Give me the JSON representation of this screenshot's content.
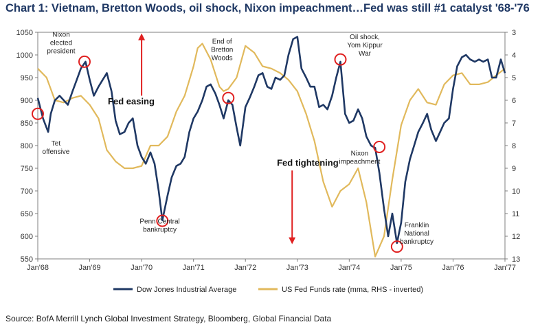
{
  "title": "Chart 1: Vietnam, Bretton Woods, oil shock, Nixon impeachment…Fed was still #1 catalyst '68-'76",
  "source": "Source: BofA Merrill Lynch Global Investment Strategy, Bloomberg, Global Financial Data",
  "colors": {
    "djia": "#1f3864",
    "fed": "#e1b95c",
    "marker": "#e02020",
    "arrow": "#e02020"
  },
  "chart_data": {
    "type": "line",
    "x_start": "Jan'68",
    "x_end": "Jan'77",
    "x_ticks": [
      "Jan'68",
      "Jan'69",
      "Jan'70",
      "Jan'71",
      "Jan'72",
      "Jan'73",
      "Jan'74",
      "Jan'75",
      "Jan'76",
      "Jan'77"
    ],
    "y_left": {
      "min": 550,
      "max": 1050,
      "ticks": [
        550,
        600,
        650,
        700,
        750,
        800,
        850,
        900,
        950,
        1000,
        1050
      ]
    },
    "y_right": {
      "min": 3,
      "max": 13,
      "inverted": true,
      "ticks": [
        3,
        4,
        5,
        6,
        7,
        8,
        9,
        10,
        11,
        12,
        13
      ]
    },
    "grid": false,
    "legend_position": "bottom",
    "series": [
      {
        "name": "Dow Jones Industrial Average",
        "axis": "left",
        "points": [
          [
            1968.0,
            905
          ],
          [
            1968.1,
            860
          ],
          [
            1968.2,
            830
          ],
          [
            1968.25,
            870
          ],
          [
            1968.33,
            900
          ],
          [
            1968.42,
            910
          ],
          [
            1968.5,
            900
          ],
          [
            1968.58,
            890
          ],
          [
            1968.67,
            920
          ],
          [
            1968.75,
            945
          ],
          [
            1968.83,
            970
          ],
          [
            1968.92,
            985
          ],
          [
            1969.0,
            945
          ],
          [
            1969.08,
            910
          ],
          [
            1969.17,
            930
          ],
          [
            1969.25,
            945
          ],
          [
            1969.33,
            960
          ],
          [
            1969.42,
            920
          ],
          [
            1969.5,
            855
          ],
          [
            1969.58,
            825
          ],
          [
            1969.67,
            830
          ],
          [
            1969.75,
            850
          ],
          [
            1969.83,
            860
          ],
          [
            1969.92,
            800
          ],
          [
            1970.0,
            775
          ],
          [
            1970.08,
            760
          ],
          [
            1970.17,
            785
          ],
          [
            1970.25,
            760
          ],
          [
            1970.33,
            700
          ],
          [
            1970.4,
            635
          ],
          [
            1970.5,
            690
          ],
          [
            1970.58,
            730
          ],
          [
            1970.67,
            755
          ],
          [
            1970.75,
            760
          ],
          [
            1970.83,
            775
          ],
          [
            1970.92,
            830
          ],
          [
            1971.0,
            860
          ],
          [
            1971.08,
            875
          ],
          [
            1971.17,
            900
          ],
          [
            1971.25,
            930
          ],
          [
            1971.33,
            935
          ],
          [
            1971.42,
            915
          ],
          [
            1971.5,
            890
          ],
          [
            1971.58,
            860
          ],
          [
            1971.67,
            900
          ],
          [
            1971.75,
            890
          ],
          [
            1971.83,
            840
          ],
          [
            1971.9,
            800
          ],
          [
            1972.0,
            885
          ],
          [
            1972.08,
            905
          ],
          [
            1972.17,
            930
          ],
          [
            1972.25,
            955
          ],
          [
            1972.33,
            960
          ],
          [
            1972.42,
            930
          ],
          [
            1972.5,
            925
          ],
          [
            1972.58,
            950
          ],
          [
            1972.67,
            945
          ],
          [
            1972.75,
            955
          ],
          [
            1972.83,
            1000
          ],
          [
            1972.92,
            1035
          ],
          [
            1973.0,
            1040
          ],
          [
            1973.08,
            970
          ],
          [
            1973.17,
            950
          ],
          [
            1973.25,
            930
          ],
          [
            1973.33,
            930
          ],
          [
            1973.42,
            885
          ],
          [
            1973.5,
            890
          ],
          [
            1973.58,
            880
          ],
          [
            1973.67,
            910
          ],
          [
            1973.75,
            950
          ],
          [
            1973.83,
            985
          ],
          [
            1973.92,
            870
          ],
          [
            1974.0,
            850
          ],
          [
            1974.08,
            855
          ],
          [
            1974.17,
            880
          ],
          [
            1974.25,
            860
          ],
          [
            1974.33,
            820
          ],
          [
            1974.42,
            800
          ],
          [
            1974.5,
            795
          ],
          [
            1974.58,
            740
          ],
          [
            1974.67,
            660
          ],
          [
            1974.75,
            600
          ],
          [
            1974.83,
            650
          ],
          [
            1974.92,
            585
          ],
          [
            1975.0,
            630
          ],
          [
            1975.08,
            720
          ],
          [
            1975.17,
            770
          ],
          [
            1975.25,
            800
          ],
          [
            1975.33,
            830
          ],
          [
            1975.42,
            850
          ],
          [
            1975.5,
            870
          ],
          [
            1975.58,
            835
          ],
          [
            1975.67,
            810
          ],
          [
            1975.75,
            830
          ],
          [
            1975.83,
            850
          ],
          [
            1975.92,
            860
          ],
          [
            1976.0,
            925
          ],
          [
            1976.08,
            975
          ],
          [
            1976.17,
            995
          ],
          [
            1976.25,
            1000
          ],
          [
            1976.33,
            990
          ],
          [
            1976.42,
            985
          ],
          [
            1976.5,
            990
          ],
          [
            1976.58,
            985
          ],
          [
            1976.67,
            990
          ],
          [
            1976.75,
            950
          ],
          [
            1976.83,
            950
          ],
          [
            1976.92,
            990
          ],
          [
            1977.0,
            960
          ]
        ]
      },
      {
        "name": "US Fed Funds rate (mma, RHS - inverted)",
        "axis": "right",
        "points": [
          [
            1968.0,
            4.6
          ],
          [
            1968.17,
            5.0
          ],
          [
            1968.33,
            6.0
          ],
          [
            1968.5,
            6.1
          ],
          [
            1968.67,
            5.9
          ],
          [
            1968.83,
            5.8
          ],
          [
            1969.0,
            6.2
          ],
          [
            1969.17,
            6.8
          ],
          [
            1969.33,
            8.2
          ],
          [
            1969.5,
            8.7
          ],
          [
            1969.67,
            9.0
          ],
          [
            1969.83,
            9.0
          ],
          [
            1970.0,
            8.9
          ],
          [
            1970.17,
            8.0
          ],
          [
            1970.33,
            8.0
          ],
          [
            1970.5,
            7.6
          ],
          [
            1970.67,
            6.5
          ],
          [
            1970.83,
            5.8
          ],
          [
            1971.0,
            4.5
          ],
          [
            1971.08,
            3.7
          ],
          [
            1971.17,
            3.5
          ],
          [
            1971.33,
            4.2
          ],
          [
            1971.5,
            5.4
          ],
          [
            1971.58,
            5.6
          ],
          [
            1971.67,
            5.5
          ],
          [
            1971.83,
            5.0
          ],
          [
            1972.0,
            3.6
          ],
          [
            1972.17,
            3.9
          ],
          [
            1972.33,
            4.5
          ],
          [
            1972.5,
            4.6
          ],
          [
            1972.67,
            4.8
          ],
          [
            1972.83,
            5.1
          ],
          [
            1973.0,
            5.6
          ],
          [
            1973.17,
            6.6
          ],
          [
            1973.33,
            7.8
          ],
          [
            1973.5,
            9.6
          ],
          [
            1973.67,
            10.7
          ],
          [
            1973.83,
            10.0
          ],
          [
            1974.0,
            9.7
          ],
          [
            1974.17,
            9.0
          ],
          [
            1974.33,
            10.5
          ],
          [
            1974.5,
            12.9
          ],
          [
            1974.67,
            12.0
          ],
          [
            1974.83,
            9.5
          ],
          [
            1975.0,
            7.1
          ],
          [
            1975.17,
            6.0
          ],
          [
            1975.33,
            5.5
          ],
          [
            1975.5,
            6.1
          ],
          [
            1975.67,
            6.2
          ],
          [
            1975.83,
            5.3
          ],
          [
            1976.0,
            4.9
          ],
          [
            1976.17,
            4.8
          ],
          [
            1976.33,
            5.3
          ],
          [
            1976.5,
            5.3
          ],
          [
            1976.67,
            5.2
          ],
          [
            1976.83,
            4.9
          ],
          [
            1977.0,
            4.6
          ]
        ]
      }
    ],
    "markers": [
      {
        "x": 1968.0,
        "y": 870
      },
      {
        "x": 1968.9,
        "y": 985
      },
      {
        "x": 1970.4,
        "y": 634
      },
      {
        "x": 1971.67,
        "y": 905
      },
      {
        "x": 1973.83,
        "y": 990
      },
      {
        "x": 1974.58,
        "y": 797
      },
      {
        "x": 1974.92,
        "y": 577
      }
    ],
    "annotations": [
      {
        "lines": [
          "Nixon",
          "elected",
          "president"
        ],
        "x": 1968.45,
        "y": 1040
      },
      {
        "lines": [
          "Tet",
          "offensive"
        ],
        "x": 1968.35,
        "y": 800
      },
      {
        "lines": [
          "Penn Central",
          "bankruptcy"
        ],
        "x": 1970.35,
        "y": 628
      },
      {
        "lines": [
          "End of",
          "Bretton",
          "Woods"
        ],
        "x": 1971.55,
        "y": 1025
      },
      {
        "lines": [
          "Oil shock,",
          "Yom Kippur",
          "War"
        ],
        "x": 1974.3,
        "y": 1035
      },
      {
        "lines": [
          "Nixon",
          "impeachment"
        ],
        "x": 1974.2,
        "y": 778
      },
      {
        "lines": [
          "Franklin",
          "National",
          "bankruptcy"
        ],
        "x": 1975.3,
        "y": 620
      }
    ],
    "labels": [
      {
        "text": "Fed easing",
        "x": 1969.8,
        "y": 891
      },
      {
        "text": "Fed tightening",
        "x": 1973.2,
        "y": 755
      }
    ]
  }
}
